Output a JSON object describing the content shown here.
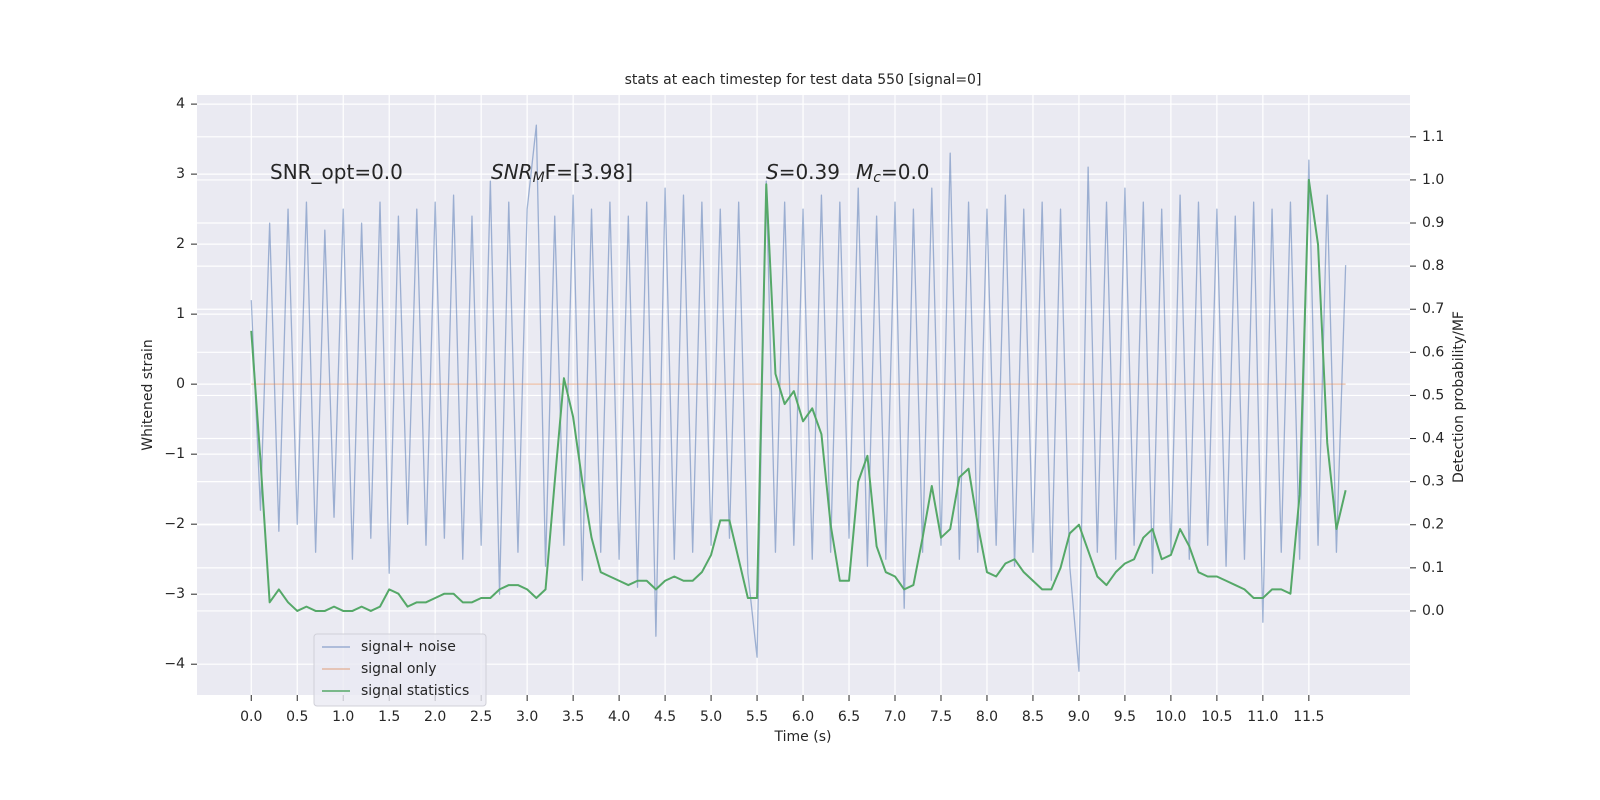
{
  "chart_data": {
    "type": "line",
    "title": "stats at each timestep for test data 550 [signal=0]",
    "xlabel": "Time (s)",
    "ylabel": "Whitened strain",
    "y2label": "Detection probability/MF",
    "annotations": [
      [
        "SNR_opt=0.0"
      ],
      [
        "SNR",
        "M",
        "F=[3.98]"
      ],
      [
        "S",
        "=0.39",
        "M",
        "c",
        "=0.0"
      ]
    ],
    "x": [
      0.0,
      0.1,
      0.2,
      0.3,
      0.4,
      0.5,
      0.6,
      0.7,
      0.8,
      0.9,
      1.0,
      1.1,
      1.2,
      1.3,
      1.4,
      1.5,
      1.6,
      1.7,
      1.8,
      1.9,
      2.0,
      2.1,
      2.2,
      2.3,
      2.4,
      2.5,
      2.6,
      2.7,
      2.8,
      2.9,
      3.0,
      3.1,
      3.2,
      3.3,
      3.4,
      3.5,
      3.6,
      3.7,
      3.8,
      3.9,
      4.0,
      4.1,
      4.2,
      4.3,
      4.4,
      4.5,
      4.6,
      4.7,
      4.8,
      4.9,
      5.0,
      5.1,
      5.2,
      5.3,
      5.4,
      5.5,
      5.6,
      5.7,
      5.8,
      5.9,
      6.0,
      6.1,
      6.2,
      6.3,
      6.4,
      6.5,
      6.6,
      6.7,
      6.8,
      6.9,
      7.0,
      7.1,
      7.2,
      7.3,
      7.4,
      7.5,
      7.6,
      7.7,
      7.8,
      7.9,
      8.0,
      8.1,
      8.2,
      8.3,
      8.4,
      8.5,
      8.6,
      8.7,
      8.8,
      8.9,
      9.0,
      9.1,
      9.2,
      9.3,
      9.4,
      9.5,
      9.6,
      9.7,
      9.8,
      9.9,
      10.0,
      10.1,
      10.2,
      10.3,
      10.4,
      10.5,
      10.6,
      10.7,
      10.8,
      10.9,
      11.0,
      11.1,
      11.2,
      11.3,
      11.4,
      11.5,
      11.6,
      11.7,
      11.8,
      11.9
    ],
    "series": [
      {
        "name": "signal+ noise",
        "color": "#4c72b0",
        "opacity": 0.5,
        "values": [
          1.2,
          -1.8,
          2.3,
          -2.1,
          2.5,
          -2.0,
          2.6,
          -2.4,
          2.2,
          -1.9,
          2.5,
          -2.5,
          2.3,
          -2.2,
          2.6,
          -2.7,
          2.4,
          -2.0,
          2.5,
          -2.3,
          2.6,
          -2.2,
          2.7,
          -2.5,
          2.4,
          -2.3,
          2.9,
          -3.0,
          2.6,
          -2.4,
          2.5,
          3.7,
          -2.6,
          2.4,
          -2.3,
          2.7,
          -2.8,
          2.5,
          -2.4,
          2.6,
          -2.5,
          2.4,
          -2.9,
          2.6,
          -3.6,
          2.8,
          -2.5,
          2.7,
          -2.4,
          2.6,
          -2.3,
          2.5,
          -2.2,
          2.6,
          -2.7,
          -3.9,
          2.9,
          -2.4,
          2.6,
          -2.3,
          2.5,
          -2.5,
          2.7,
          -2.4,
          2.6,
          -2.2,
          2.8,
          -2.6,
          2.4,
          -2.5,
          2.6,
          -3.2,
          2.5,
          -2.4,
          2.8,
          -2.3,
          3.3,
          -2.5,
          2.6,
          -2.4,
          2.5,
          -2.3,
          2.7,
          -2.6,
          2.5,
          -2.4,
          2.6,
          -2.8,
          2.5,
          -2.6,
          -4.1,
          3.1,
          -2.4,
          2.6,
          -2.5,
          2.8,
          -2.3,
          2.6,
          -2.7,
          2.5,
          -2.4,
          2.7,
          -2.5,
          2.6,
          -2.3,
          2.5,
          -2.6,
          2.4,
          -2.5,
          2.6,
          -3.4,
          2.5,
          -2.4,
          2.6,
          -2.5,
          3.2,
          -2.3,
          2.7,
          -2.4,
          1.7
        ]
      },
      {
        "name": "signal only",
        "color": "#dd8452",
        "opacity": 0.5,
        "values": [
          0,
          0,
          0,
          0,
          0,
          0,
          0,
          0,
          0,
          0,
          0,
          0,
          0,
          0,
          0,
          0,
          0,
          0,
          0,
          0,
          0,
          0,
          0,
          0,
          0,
          0,
          0,
          0,
          0,
          0,
          0,
          0,
          0,
          0,
          0,
          0,
          0,
          0,
          0,
          0,
          0,
          0,
          0,
          0,
          0,
          0,
          0,
          0,
          0,
          0,
          0,
          0,
          0,
          0,
          0,
          0,
          0,
          0,
          0,
          0,
          0,
          0,
          0,
          0,
          0,
          0,
          0,
          0,
          0,
          0,
          0,
          0,
          0,
          0,
          0,
          0,
          0,
          0,
          0,
          0,
          0,
          0,
          0,
          0,
          0,
          0,
          0,
          0,
          0,
          0,
          0,
          0,
          0,
          0,
          0,
          0,
          0,
          0,
          0,
          0,
          0,
          0,
          0,
          0,
          0,
          0,
          0,
          0,
          0,
          0,
          0,
          0,
          0,
          0,
          0,
          0,
          0,
          0,
          0,
          0
        ]
      },
      {
        "name": "signal statistics",
        "color": "#55a868",
        "opacity": 1,
        "axis": "y2",
        "values": [
          0.65,
          0.35,
          0.02,
          0.05,
          0.02,
          0.0,
          0.01,
          0.0,
          0.0,
          0.01,
          0.0,
          0.0,
          0.01,
          0.0,
          0.01,
          0.05,
          0.04,
          0.01,
          0.02,
          0.02,
          0.03,
          0.04,
          0.04,
          0.02,
          0.02,
          0.03,
          0.03,
          0.05,
          0.06,
          0.06,
          0.05,
          0.03,
          0.05,
          0.3,
          0.54,
          0.45,
          0.3,
          0.17,
          0.09,
          0.08,
          0.07,
          0.06,
          0.07,
          0.07,
          0.05,
          0.07,
          0.08,
          0.07,
          0.07,
          0.09,
          0.13,
          0.21,
          0.21,
          0.12,
          0.03,
          0.03,
          0.99,
          0.55,
          0.48,
          0.51,
          0.44,
          0.47,
          0.41,
          0.2,
          0.07,
          0.07,
          0.3,
          0.36,
          0.15,
          0.09,
          0.08,
          0.05,
          0.06,
          0.17,
          0.29,
          0.17,
          0.19,
          0.31,
          0.33,
          0.2,
          0.09,
          0.08,
          0.11,
          0.12,
          0.09,
          0.07,
          0.05,
          0.05,
          0.1,
          0.18,
          0.2,
          0.14,
          0.08,
          0.06,
          0.09,
          0.11,
          0.12,
          0.17,
          0.19,
          0.12,
          0.13,
          0.19,
          0.15,
          0.09,
          0.08,
          0.08,
          0.07,
          0.06,
          0.05,
          0.03,
          0.03,
          0.05,
          0.05,
          0.04,
          0.27,
          1.0,
          0.85,
          0.39,
          0.19,
          0.28
        ]
      }
    ],
    "xlim": [
      -0.59,
      12.6
    ],
    "xticks": [
      {
        "value": 0,
        "label": "0.0"
      },
      0.5,
      {
        "value": 1,
        "label": "1.0"
      },
      1.5,
      {
        "value": 2,
        "label": "2.0"
      },
      2.5,
      {
        "value": 3,
        "label": "3.0"
      },
      3.5,
      {
        "value": 4,
        "label": "4.0"
      },
      4.5,
      {
        "value": 5,
        "label": "5.0"
      },
      5.5,
      {
        "value": 6,
        "label": "6.0"
      },
      6.5,
      {
        "value": 7,
        "label": "7.0"
      },
      7.5,
      {
        "value": 8,
        "label": "8.0"
      },
      8.5,
      {
        "value": 9,
        "label": "9.0"
      },
      9.5,
      {
        "value": 10,
        "label": "10.0"
      },
      10.5,
      {
        "value": 11,
        "label": "11.0"
      },
      11.5
    ],
    "ylim": [
      -4.44,
      4.13
    ],
    "yticks": [
      {
        "value": -4,
        "label": "−4"
      },
      {
        "value": -3,
        "label": "−3"
      },
      {
        "value": -2,
        "label": "−2"
      },
      {
        "value": -1,
        "label": "−1"
      },
      0,
      1,
      2,
      3,
      4
    ],
    "y2lim": [
      -0.195,
      1.197
    ],
    "y2ticks": [
      {
        "value": 0,
        "label": "0.0"
      },
      0.1,
      0.2,
      0.3,
      0.4,
      0.5,
      0.6,
      0.7,
      0.8,
      0.9,
      {
        "value": 1,
        "label": "1.0"
      },
      1.1
    ],
    "grid": true,
    "legend": "lower left"
  }
}
